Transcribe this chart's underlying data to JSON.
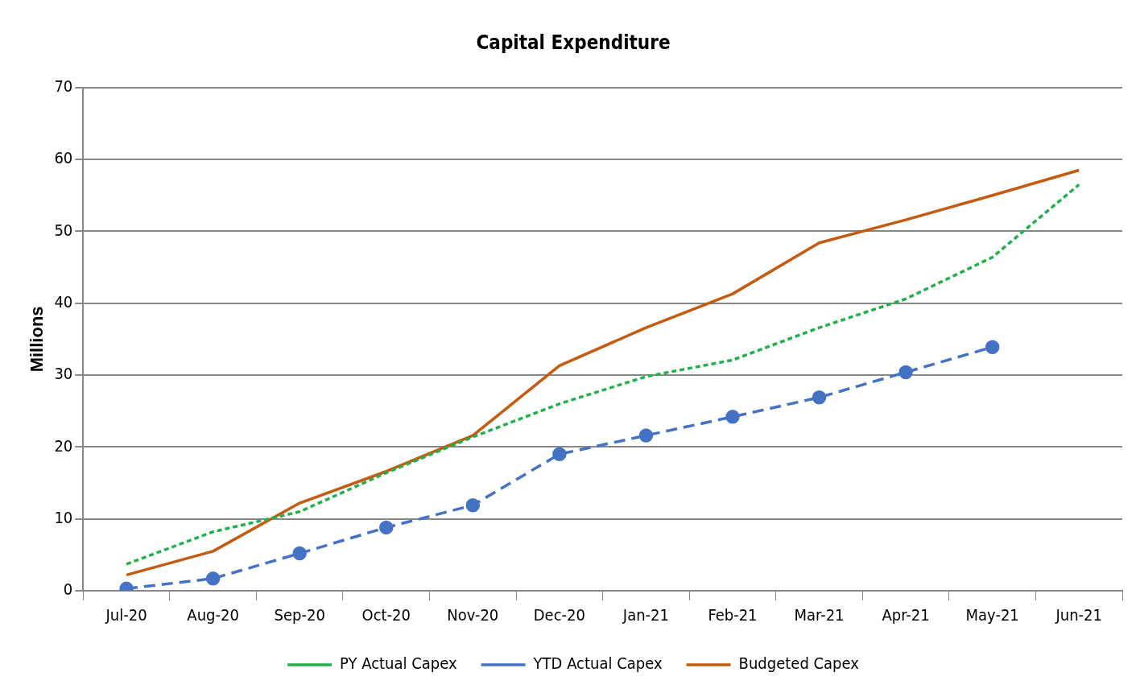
{
  "chart_data": {
    "type": "line",
    "title": "Capital Expenditure",
    "ylabel": "Millions",
    "categories": [
      "Jul-20",
      "Aug-20",
      "Sep-20",
      "Oct-20",
      "Nov-20",
      "Dec-20",
      "Jan-21",
      "Feb-21",
      "Mar-21",
      "Apr-21",
      "May-21",
      "Jun-21"
    ],
    "series": [
      {
        "name": "PY Actual Capex",
        "color": "#22b04b",
        "line_style": "dotted",
        "marker": "none",
        "values": [
          3.7,
          8.2,
          11,
          16.4,
          21.4,
          26,
          29.8,
          32.1,
          36.6,
          40.6,
          46.4,
          56.5
        ]
      },
      {
        "name": "YTD Actual Capex",
        "color": "#4472c4",
        "line_style": "dashed",
        "marker": "circle",
        "values": [
          0.3,
          1.7,
          5.2,
          8.8,
          11.9,
          19,
          21.6,
          24.2,
          26.9,
          30.4,
          33.9,
          null
        ]
      },
      {
        "name": "Budgeted Capex",
        "color": "#c55a11",
        "line_style": "solid",
        "marker": "none",
        "values": [
          2.2,
          5.5,
          12.2,
          16.6,
          21.6,
          31.3,
          36.6,
          41.3,
          48.4,
          51.6,
          55,
          58.5
        ]
      }
    ],
    "ylim": [
      0,
      70
    ],
    "yticks": [
      0,
      10,
      20,
      30,
      40,
      50,
      60,
      70
    ],
    "grid": "y",
    "legend": "bottom"
  }
}
